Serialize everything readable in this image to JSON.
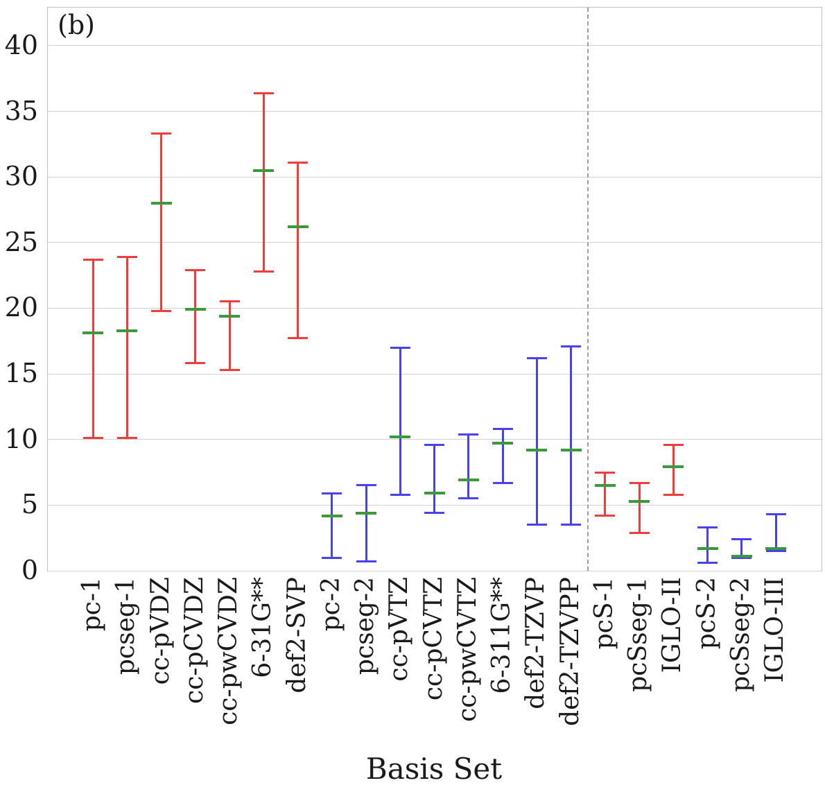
{
  "panel_label": "(b)",
  "chart_data": {
    "type": "errorbar",
    "title": "",
    "xlabel": "Basis Set",
    "ylabel": "",
    "ylim": [
      0,
      42.9
    ],
    "yticks": [
      0,
      5,
      10,
      15,
      20,
      25,
      30,
      35,
      40
    ],
    "grid": "horizontal",
    "legend_position": "none",
    "separator": {
      "after_category": "def2-TZVPP",
      "style": "dashed",
      "color": "#9e9e9e"
    },
    "colors": {
      "red": "#f23c3c",
      "blue": "#4741ee",
      "mean_marker": "#3a9a3a",
      "grid": "#d2d2d2"
    },
    "points": [
      {
        "label": "pc-1",
        "color": "red",
        "min": 10.1,
        "mean": 18.1,
        "max": 23.7
      },
      {
        "label": "pcseg-1",
        "color": "red",
        "min": 10.1,
        "mean": 18.3,
        "max": 23.9
      },
      {
        "label": "cc-pVDZ",
        "color": "red",
        "min": 19.8,
        "mean": 28.0,
        "max": 33.3
      },
      {
        "label": "cc-pCVDZ",
        "color": "red",
        "min": 15.8,
        "mean": 19.9,
        "max": 22.9
      },
      {
        "label": "cc-pwCVDZ",
        "color": "red",
        "min": 15.3,
        "mean": 19.4,
        "max": 20.5
      },
      {
        "label": "6-31G**",
        "color": "red",
        "min": 22.8,
        "mean": 30.5,
        "max": 36.4
      },
      {
        "label": "def2-SVP",
        "color": "red",
        "min": 17.7,
        "mean": 26.2,
        "max": 31.1
      },
      {
        "label": "pc-2",
        "color": "blue",
        "min": 1.0,
        "mean": 4.2,
        "max": 5.9
      },
      {
        "label": "pcseg-2",
        "color": "blue",
        "min": 0.7,
        "mean": 4.4,
        "max": 6.5
      },
      {
        "label": "cc-pVTZ",
        "color": "blue",
        "min": 5.8,
        "mean": 10.2,
        "max": 17.0
      },
      {
        "label": "cc-pCVTZ",
        "color": "blue",
        "min": 4.4,
        "mean": 5.9,
        "max": 9.6
      },
      {
        "label": "cc-pwCVTZ",
        "color": "blue",
        "min": 5.5,
        "mean": 6.9,
        "max": 10.4
      },
      {
        "label": "6-311G**",
        "color": "blue",
        "min": 6.7,
        "mean": 9.7,
        "max": 10.8
      },
      {
        "label": "def2-TZVP",
        "color": "blue",
        "min": 3.5,
        "mean": 9.2,
        "max": 16.2
      },
      {
        "label": "def2-TZVPP",
        "color": "blue",
        "min": 3.5,
        "mean": 9.2,
        "max": 17.1
      },
      {
        "label": "pcS-1",
        "color": "red",
        "min": 4.2,
        "mean": 6.5,
        "max": 7.5
      },
      {
        "label": "pcSseg-1",
        "color": "red",
        "min": 2.9,
        "mean": 5.3,
        "max": 6.7
      },
      {
        "label": "IGLO-II",
        "color": "red",
        "min": 5.8,
        "mean": 7.9,
        "max": 9.6
      },
      {
        "label": "pcS-2",
        "color": "blue",
        "min": 0.6,
        "mean": 1.7,
        "max": 3.3
      },
      {
        "label": "pcSseg-2",
        "color": "blue",
        "min": 1.0,
        "mean": 1.1,
        "max": 2.4
      },
      {
        "label": "IGLO-III",
        "color": "blue",
        "min": 1.5,
        "mean": 1.7,
        "max": 4.3
      }
    ]
  }
}
